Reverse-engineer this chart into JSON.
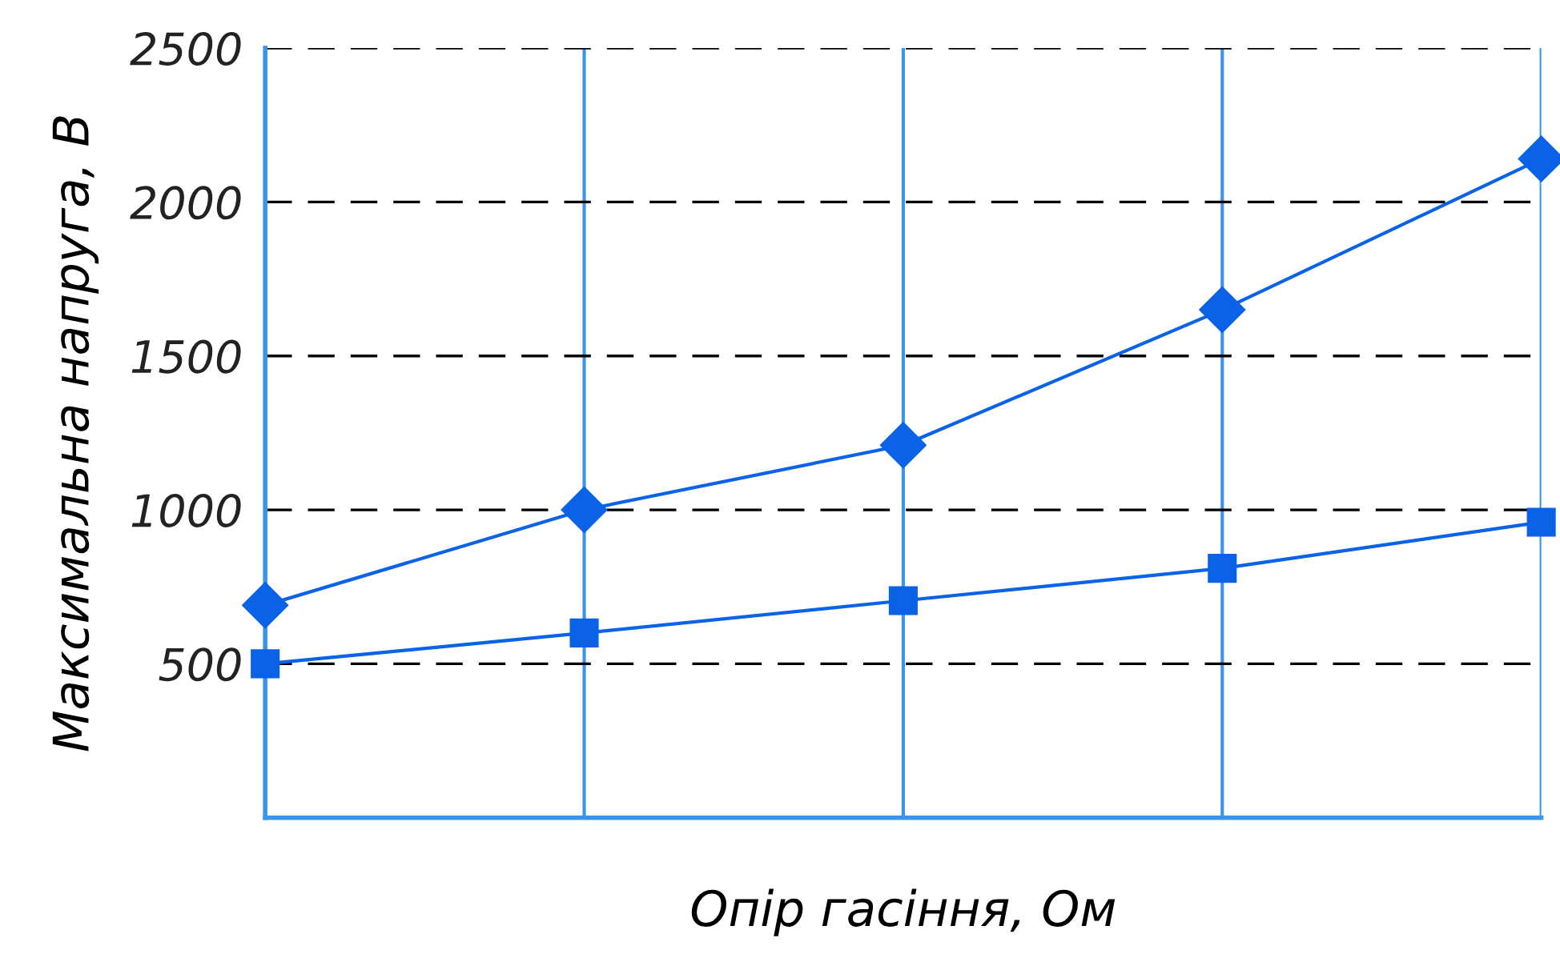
{
  "chart_data": {
    "type": "line",
    "xlabel": "Опір гасіння, Ом",
    "ylabel": "Максимальна напруга, В",
    "categories": [
      null,
      null,
      null,
      null,
      null
    ],
    "series": [
      {
        "color": "#0a62e6",
        "marker": "diamond",
        "values": [
          690,
          1000,
          1210,
          1650,
          2140
        ]
      },
      {
        "color": "#0a62e6",
        "marker": "square",
        "values": [
          500,
          600,
          705,
          810,
          960
        ]
      }
    ],
    "ylim": [
      0,
      2500
    ],
    "yticks": [
      500,
      1000,
      1500,
      2000,
      2500
    ],
    "grid": true,
    "legend": false,
    "line_style": "solid"
  }
}
